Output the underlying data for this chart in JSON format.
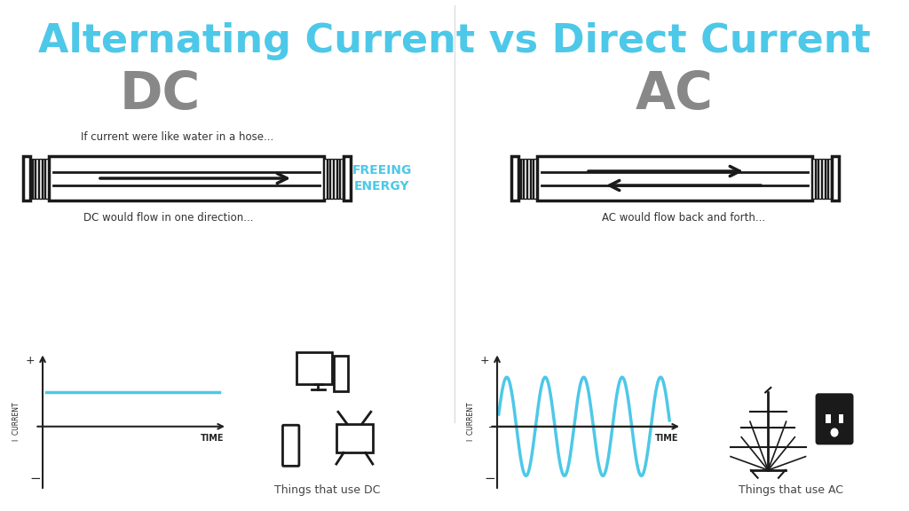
{
  "title": "Alternating Current vs Direct Current",
  "title_color": "#4DC8E8",
  "title_fontsize": 32,
  "dc_label": "DC",
  "ac_label": "AC",
  "label_color": "#888888",
  "label_fontsize": 42,
  "bg_color": "#ffffff",
  "cyan_color": "#4DC8E8",
  "dark_color": "#222222",
  "hose_text_dc": "If current were like water in a hose...",
  "hose_text_dc2": "DC would flow in one direction...",
  "hose_text_ac": "AC would flow back and forth...",
  "freeing_energy": "FREEING\nENERGY",
  "things_dc": "Things that use DC",
  "things_ac": "Things that use AC",
  "time_label": "TIME",
  "current_label": "I  CURRENT"
}
